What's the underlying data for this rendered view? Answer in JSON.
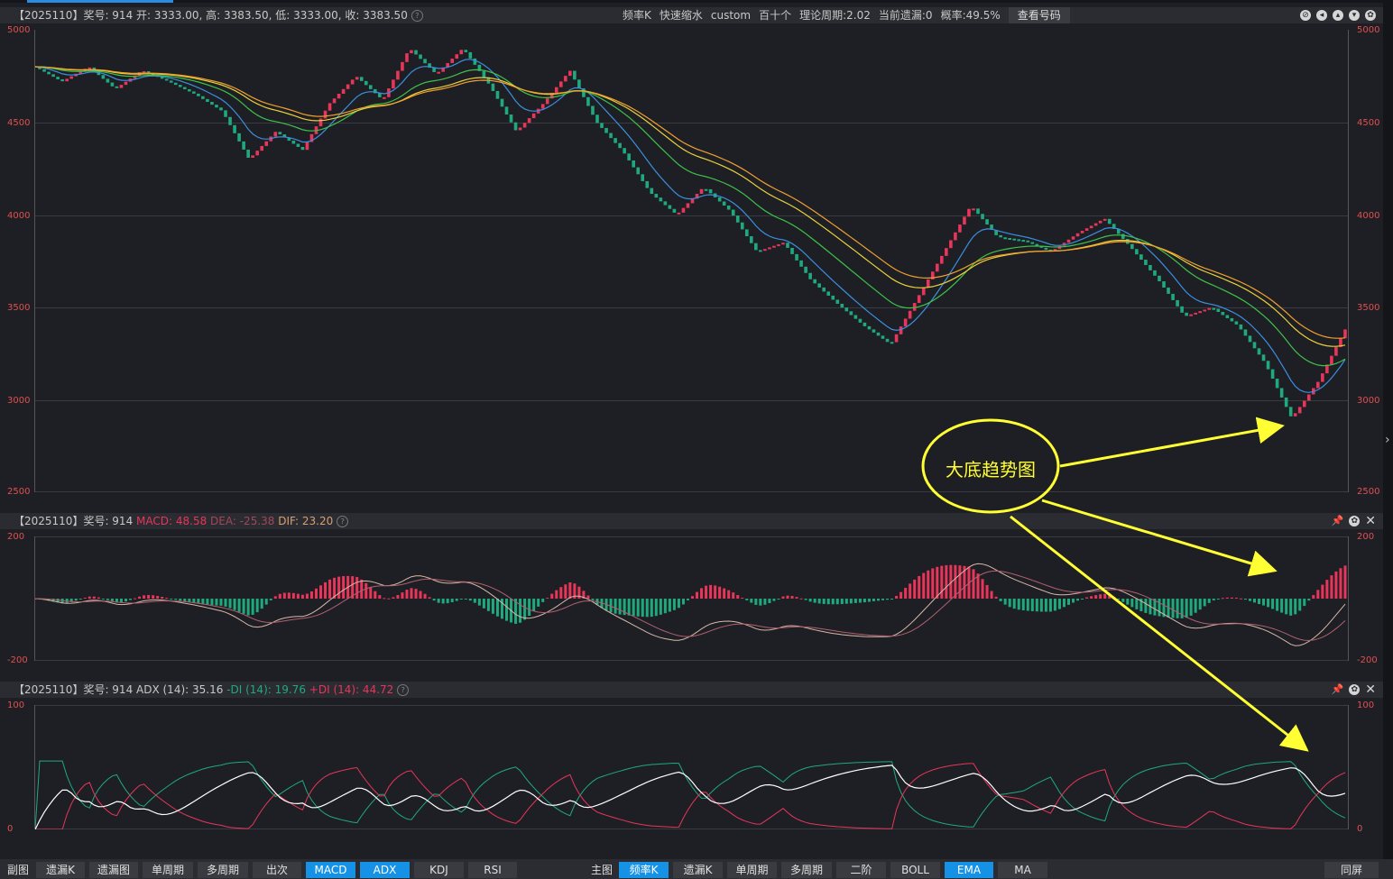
{
  "main_pane": {
    "info": "【2025110】奖号: 914   开: 3333.00, 高: 3383.50, 低: 3333.00, 收: 3383.50",
    "toolbar": [
      "频率K",
      "快速缩水",
      "custom",
      "百十个",
      "理论周期:2.02",
      "当前遗漏:0",
      "概率:49.5%"
    ],
    "view_button": "查看号码",
    "y_ticks": [
      "5000",
      "4500",
      "4000",
      "3500",
      "3000",
      "2500"
    ]
  },
  "macd_pane": {
    "info_prefix": "【2025110】奖号: 914 ",
    "macd": "MACD: 48.58",
    "dea": "DEA: -25.38",
    "dif": "DIF: 23.20",
    "y_ticks": [
      "200",
      "-200"
    ]
  },
  "adx_pane": {
    "info_prefix": "【2025110】奖号: 914 ADX (14): 35.16",
    "mdi": "-DI (14): 19.76",
    "pdi": "+DI (14): 44.72",
    "y_ticks": [
      "100",
      "0"
    ]
  },
  "annotation": {
    "text": "大底趋势图",
    "color": "#ffff33"
  },
  "bottom_bar": {
    "left_label": "副图",
    "left_tabs": [
      "遗漏K",
      "遗漏图",
      "单周期",
      "多周期",
      "出次",
      "MACD",
      "ADX",
      "KDJ",
      "RSI"
    ],
    "right_label": "主图",
    "right_tabs": [
      "频率K",
      "遗漏K",
      "单周期",
      "多周期",
      "二阶",
      "BOLL",
      "EMA",
      "MA"
    ],
    "fullscreen": "同屏"
  },
  "colors": {
    "up": "#e8355a",
    "down": "#1faa7e",
    "ema_fast": "#3a8fe0",
    "ema_mid": "#3ec24a",
    "ema_slow1": "#e8d23a",
    "ema_slow2": "#f0a030"
  },
  "chart_data": {
    "type": "line",
    "ylim_main": [
      2500,
      5000
    ],
    "main_series": [
      {
        "values": [
          4800,
          4720,
          4800,
          4680,
          4780,
          4720,
          4650,
          4560,
          4300,
          4450,
          4350,
          4600,
          4750,
          4620,
          4900,
          4760,
          4900,
          4700,
          4450,
          4600,
          4780,
          4500,
          4340,
          4120,
          4000,
          4150,
          4020,
          3800,
          3850,
          3650,
          3520,
          3400,
          3300,
          3550,
          3800,
          4050,
          3880,
          3860,
          3800,
          3900,
          3980,
          3820,
          3650,
          3450,
          3500,
          3400,
          3200,
          2900,
          3100,
          3380
        ]
      }
    ],
    "macd_ylim": [
      -200,
      200
    ],
    "adx_ylim": [
      0,
      100
    ]
  }
}
